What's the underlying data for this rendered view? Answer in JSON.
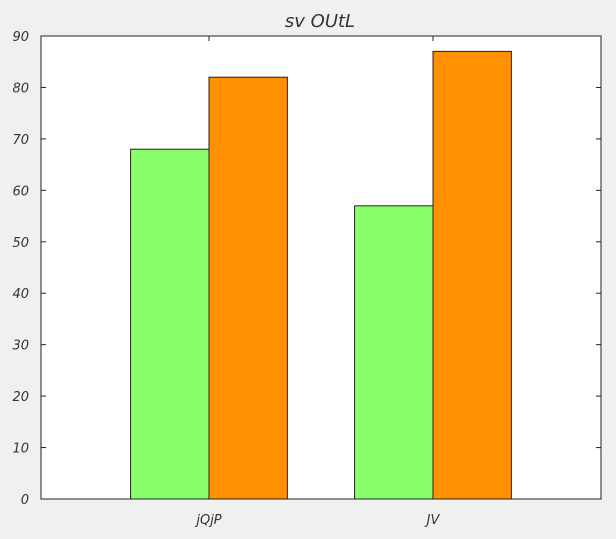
{
  "chart_data": {
    "type": "bar",
    "title": "sv OUtL",
    "xlabel": "",
    "ylabel": "",
    "categories": [
      "jQjP",
      "JV"
    ],
    "series": [
      {
        "color": "#88ff6a",
        "values": [
          68,
          57
        ]
      },
      {
        "color": "#ff9100",
        "values": [
          82,
          87
        ]
      }
    ],
    "ylim": [
      0,
      90
    ],
    "yticks": [
      0,
      10,
      20,
      30,
      40,
      50,
      60,
      70,
      80,
      90
    ],
    "grid": false,
    "legend": "none"
  }
}
